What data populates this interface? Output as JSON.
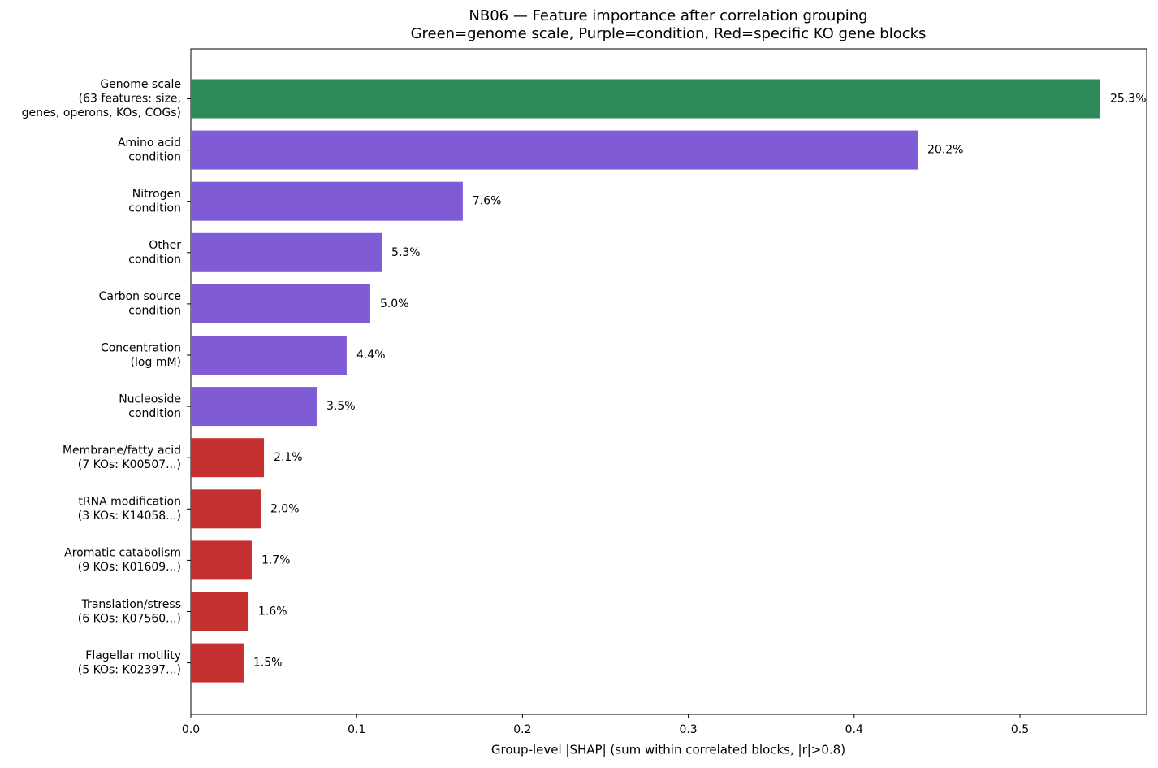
{
  "chart_data": {
    "type": "bar",
    "orientation": "horizontal",
    "title": "NB06 — Feature importance after correlation grouping",
    "subtitle": "Green=genome scale, Purple=condition, Red=specific KO gene blocks",
    "x_label": "Group-level |SHAP| (sum within correlated blocks, |r|>0.8)",
    "categories": [
      [
        "Genome scale",
        "(63 features: size,",
        "genes, operons, KOs, COGs)"
      ],
      [
        "Amino acid",
        "condition"
      ],
      [
        "Nitrogen",
        "condition"
      ],
      [
        "Other",
        "condition"
      ],
      [
        "Carbon source",
        "condition"
      ],
      [
        "Concentration",
        "(log mM)"
      ],
      [
        "Nucleoside",
        "condition"
      ],
      [
        "Membrane/fatty acid",
        "(7 KOs: K00507...)"
      ],
      [
        "tRNA modification",
        "(3 KOs: K14058...)"
      ],
      [
        "Aromatic catabolism",
        "(9 KOs: K01609...)"
      ],
      [
        "Translation/stress",
        "(6 KOs: K07560...)"
      ],
      [
        "Flagellar motility",
        "(5 KOs: K02397...)"
      ]
    ],
    "values": [
      0.5485,
      0.4383,
      0.164,
      0.1151,
      0.1082,
      0.094,
      0.0759,
      0.0441,
      0.0421,
      0.0367,
      0.0348,
      0.0318
    ],
    "annotations": [
      "25.3%",
      "20.2%",
      "7.6%",
      "5.3%",
      "5.0%",
      "4.4%",
      "3.5%",
      "2.1%",
      "2.0%",
      "1.7%",
      "1.6%",
      "1.5%"
    ],
    "colors": [
      "#2e8b57",
      "#7f5bd5",
      "#7f5bd5",
      "#7f5bd5",
      "#7f5bd5",
      "#7f5bd5",
      "#7f5bd5",
      "#c43030",
      "#c43030",
      "#c43030",
      "#c43030",
      "#c43030"
    ],
    "xlim": [
      0,
      0.5764
    ],
    "xticks": [
      {
        "value": 0,
        "label": "0.0"
      },
      0.1,
      0.2,
      0.3,
      0.4,
      0.5
    ],
    "grid": false
  }
}
